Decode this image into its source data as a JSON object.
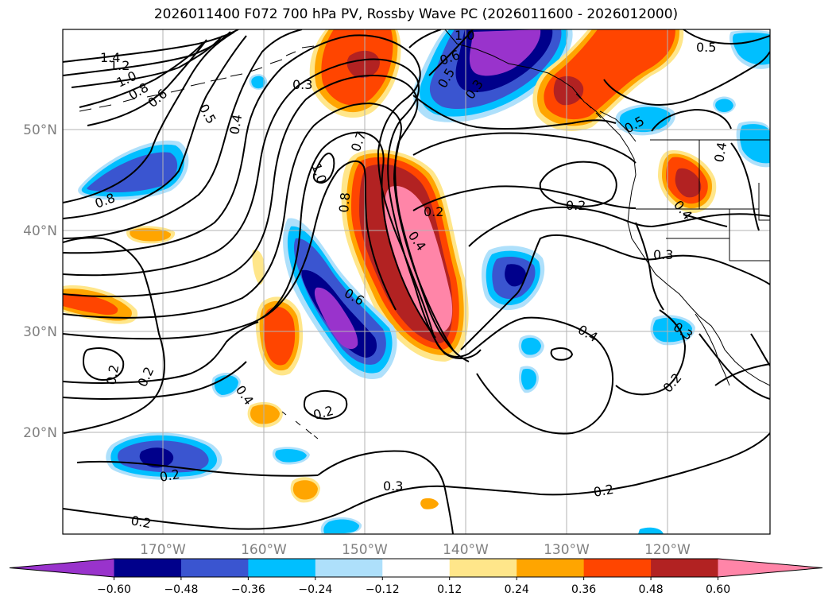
{
  "title": "2026011400 F072 700 hPa PV, Rossby Wave PC (2026011600 - 2026012000)",
  "latitude_labels": [
    "50°N",
    "40°N",
    "30°N",
    "20°N"
  ],
  "longitude_labels": [
    "170°W",
    "160°W",
    "150°W",
    "140°W",
    "130°W",
    "120°W"
  ],
  "colorbar": {
    "ticks": [
      "−0.60",
      "−0.48",
      "−0.36",
      "−0.24",
      "−0.12",
      "0.12",
      "0.24",
      "0.36",
      "0.48",
      "0.60"
    ],
    "colors": [
      "#9933cc",
      "#00008b",
      "#3a55d0",
      "#00bfff",
      "#aee0fb",
      "#ffffff",
      "#ffe68a",
      "#ffa500",
      "#ff4500",
      "#b22222",
      "#ff85a8"
    ]
  },
  "contour_labels": [
    "1.4",
    "1.2",
    "1.0",
    "0.8",
    "0.6",
    "0.5",
    "0.4",
    "0.3",
    "0.8",
    "1.0",
    "0.7",
    "0.8",
    "0.2",
    "0.4",
    "0.6",
    "0.4",
    "0.2",
    "0.2",
    "0.2",
    "0.2",
    "0.2",
    "0.2",
    "0.3",
    "0.4",
    "0.3",
    "0.2",
    "0.4",
    "0.3",
    "0.2",
    "0.5",
    "0.4",
    "0.5",
    "0.3",
    "0.5",
    "1.0",
    "0.6"
  ],
  "colors": {
    "grid": "#b3b3b3",
    "coast": "#000000",
    "contour": "#000000",
    "axis_label": "#808080"
  }
}
